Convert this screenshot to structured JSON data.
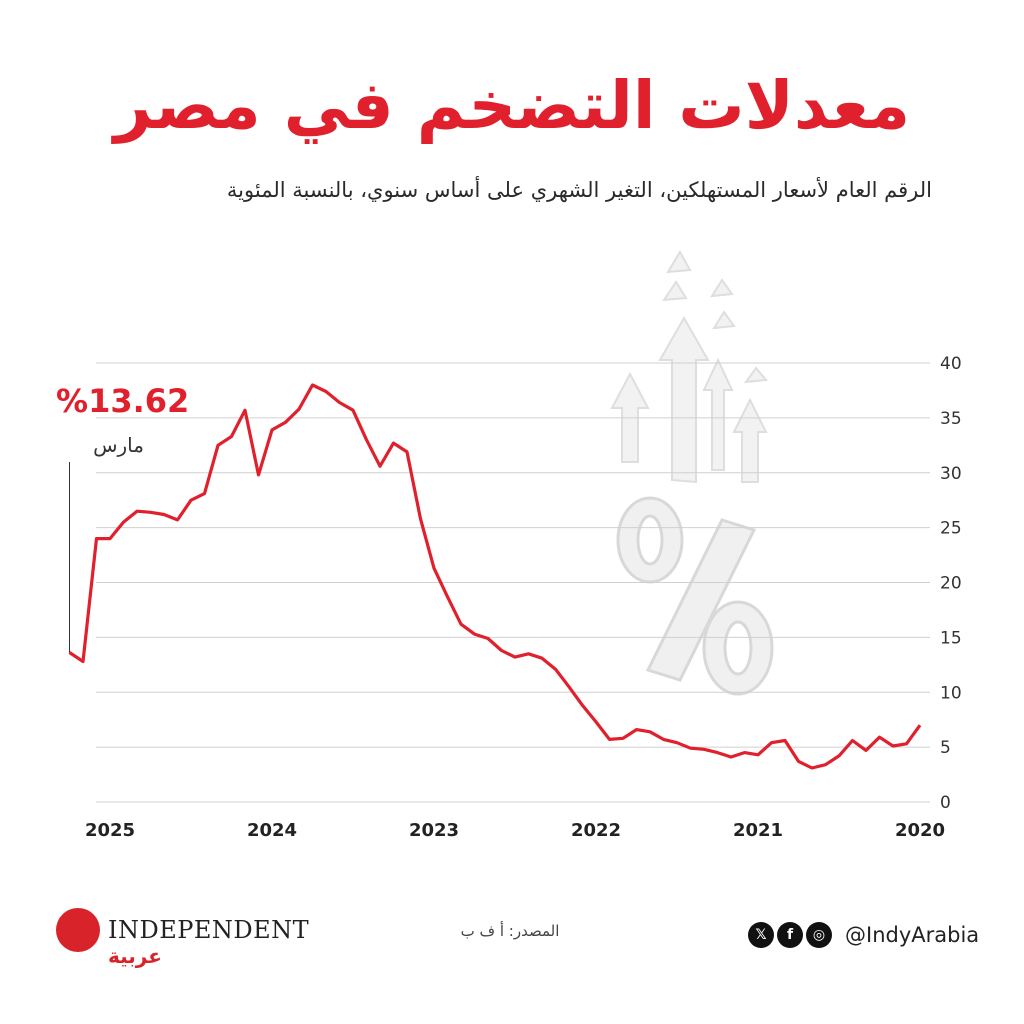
{
  "title": "معدلات التضخم في مصر",
  "subtitle": "الرقم العام لأسعار المستهلكين، التغير الشهري على أساس سنوي، بالنسبة المئوية",
  "callout": {
    "value": "%13.62",
    "label": "مارس"
  },
  "source": "المصدر: أ ف ب",
  "brand": {
    "wordmark": "INDEPENDENT",
    "sub": "عربية"
  },
  "social": {
    "handle": "@IndyArabia",
    "icons": [
      "x-icon",
      "facebook-icon",
      "instagram-icon"
    ]
  },
  "colors": {
    "accent": "#e0202c",
    "line": "#e0202c",
    "grid": "#d0d0d0"
  },
  "chart_data": {
    "type": "line",
    "title": "معدلات التضخم في مصر",
    "subtitle": "الرقم العام لأسعار المستهلكين، التغير الشهري على أساس سنوي، بالنسبة المئوية",
    "x_axis_direction": "right-to-left",
    "x_ticks": [
      {
        "label": "2020",
        "t": 0
      },
      {
        "label": "2021",
        "t": 12
      },
      {
        "label": "2022",
        "t": 24
      },
      {
        "label": "2023",
        "t": 36
      },
      {
        "label": "2024",
        "t": 48
      },
      {
        "label": "2025",
        "t": 60
      }
    ],
    "ylim": [
      0,
      40
    ],
    "y_ticks": [
      0,
      5,
      10,
      15,
      20,
      25,
      30,
      35,
      40
    ],
    "grid": true,
    "series": [
      {
        "values": [
          [
            0,
            7.0
          ],
          [
            1,
            5.3
          ],
          [
            2,
            5.1
          ],
          [
            3,
            5.9
          ],
          [
            4,
            4.7
          ],
          [
            5,
            5.6
          ],
          [
            6,
            4.2
          ],
          [
            7,
            3.4
          ],
          [
            8,
            3.1
          ],
          [
            9,
            3.7
          ],
          [
            10,
            5.6
          ],
          [
            11,
            5.4
          ],
          [
            12,
            4.3
          ],
          [
            13,
            4.5
          ],
          [
            14,
            4.1
          ],
          [
            15,
            4.5
          ],
          [
            16,
            4.8
          ],
          [
            17,
            4.9
          ],
          [
            18,
            5.4
          ],
          [
            19,
            5.7
          ],
          [
            20,
            6.4
          ],
          [
            21,
            6.6
          ],
          [
            22,
            5.8
          ],
          [
            23,
            5.7
          ],
          [
            24,
            7.3
          ],
          [
            25,
            8.8
          ],
          [
            26,
            10.5
          ],
          [
            27,
            12.1
          ],
          [
            28,
            13.1
          ],
          [
            29,
            13.5
          ],
          [
            30,
            13.2
          ],
          [
            31,
            13.8
          ],
          [
            32,
            14.9
          ],
          [
            33,
            15.3
          ],
          [
            34,
            16.2
          ],
          [
            35,
            18.7
          ],
          [
            36,
            21.3
          ],
          [
            37,
            25.8
          ],
          [
            38,
            31.9
          ],
          [
            39,
            32.7
          ],
          [
            40,
            30.6
          ],
          [
            41,
            33.0
          ],
          [
            42,
            35.7
          ],
          [
            43,
            36.4
          ],
          [
            44,
            37.4
          ],
          [
            45,
            38.0
          ],
          [
            46,
            35.8
          ],
          [
            47,
            34.6
          ],
          [
            48,
            33.9
          ],
          [
            49,
            29.8
          ],
          [
            50,
            35.7
          ],
          [
            51,
            33.3
          ],
          [
            52,
            32.5
          ],
          [
            53,
            28.1
          ],
          [
            54,
            27.5
          ],
          [
            55,
            25.7
          ],
          [
            56,
            26.2
          ],
          [
            57,
            26.4
          ],
          [
            58,
            26.5
          ],
          [
            59,
            25.5
          ],
          [
            60,
            24.0
          ],
          [
            61,
            24.0
          ],
          [
            62,
            12.8
          ],
          [
            63,
            13.62
          ]
        ]
      }
    ],
    "annotation": {
      "t": 63,
      "value": 13.62,
      "text": "%13.62",
      "label": "مارس"
    }
  }
}
